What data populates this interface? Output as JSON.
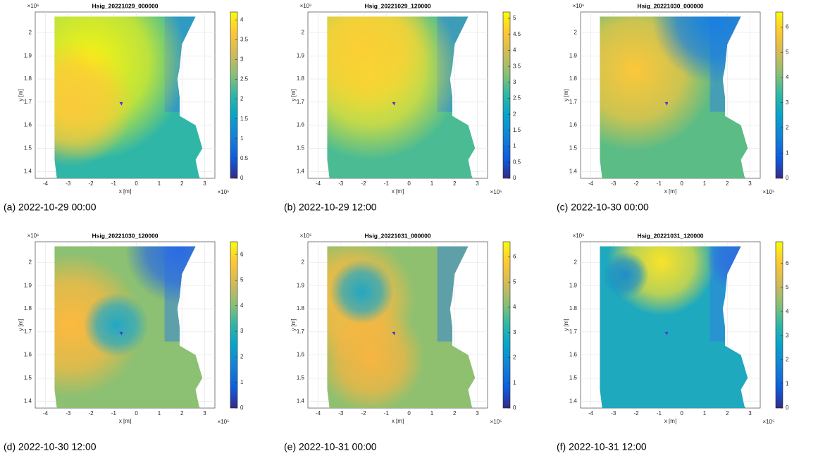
{
  "chart_data": [
    {
      "type": "heatmap",
      "title": "Hsig_20221029_000000",
      "caption": "(a) 2022-10-29 00:00",
      "xlabel": "x [m]",
      "ylabel": "y [m]",
      "x_multiplier": "×10⁵",
      "y_multiplier": "×10⁶",
      "xlim": [
        -4.45,
        3.45
      ],
      "xticks": [
        -4,
        -3,
        -2,
        -1,
        0,
        1,
        2,
        3
      ],
      "ylim": [
        1.37,
        2.09
      ],
      "yticks": [
        1.4,
        1.5,
        1.6,
        1.7,
        1.8,
        1.9,
        2
      ],
      "clim": [
        0,
        4.2
      ],
      "cticks": [
        0,
        0.5,
        1,
        1.5,
        2,
        2.5,
        3,
        3.5,
        4
      ]
    },
    {
      "type": "heatmap",
      "title": "Hsig_20221029_120000",
      "caption": "(b) 2022-10-29 12:00",
      "xlabel": "x [m]",
      "ylabel": "y [m]",
      "x_multiplier": "×10⁵",
      "y_multiplier": "×10⁶",
      "xlim": [
        -4.45,
        3.45
      ],
      "xticks": [
        -4,
        -3,
        -2,
        -1,
        0,
        1,
        2,
        3
      ],
      "ylim": [
        1.37,
        2.09
      ],
      "yticks": [
        1.4,
        1.5,
        1.6,
        1.7,
        1.8,
        1.9,
        2
      ],
      "clim": [
        0,
        5.2
      ],
      "cticks": [
        0,
        0.5,
        1,
        1.5,
        2,
        2.5,
        3,
        3.5,
        4,
        4.5,
        5
      ]
    },
    {
      "type": "heatmap",
      "title": "Hsig_20221030_000000",
      "caption": "(c) 2022-10-30 00:00",
      "xlabel": "x [m]",
      "ylabel": "y [m]",
      "x_multiplier": "×10⁵",
      "y_multiplier": "×10⁶",
      "xlim": [
        -4.45,
        3.45
      ],
      "xticks": [
        -4,
        -3,
        -2,
        -1,
        0,
        1,
        2,
        3
      ],
      "ylim": [
        1.37,
        2.09
      ],
      "yticks": [
        1.4,
        1.5,
        1.6,
        1.7,
        1.8,
        1.9,
        2
      ],
      "clim": [
        0,
        6.6
      ],
      "cticks": [
        0,
        1,
        2,
        3,
        4,
        5,
        6
      ]
    },
    {
      "type": "heatmap",
      "title": "Hsig_20221030_120000",
      "caption": "(d) 2022-10-30 12:00",
      "xlabel": "x [m]",
      "ylabel": "y [m]",
      "x_multiplier": "×10⁵",
      "y_multiplier": "×10⁶",
      "xlim": [
        -4.45,
        3.45
      ],
      "xticks": [
        -4,
        -3,
        -2,
        -1,
        0,
        1,
        2,
        3
      ],
      "ylim": [
        1.37,
        2.09
      ],
      "yticks": [
        1.4,
        1.5,
        1.6,
        1.7,
        1.8,
        1.9,
        2
      ],
      "clim": [
        0,
        6.5
      ],
      "cticks": [
        0,
        1,
        2,
        3,
        4,
        5,
        6
      ]
    },
    {
      "type": "heatmap",
      "title": "Hsig_20221031_000000",
      "caption": "(e) 2022-10-31 00:00",
      "xlabel": "x [m]",
      "ylabel": "y [m]",
      "x_multiplier": "×10⁵",
      "y_multiplier": "×10⁶",
      "xlim": [
        -4.45,
        3.45
      ],
      "xticks": [
        -4,
        -3,
        -2,
        -1,
        0,
        1,
        2,
        3
      ],
      "ylim": [
        1.37,
        2.09
      ],
      "yticks": [
        1.4,
        1.5,
        1.6,
        1.7,
        1.8,
        1.9,
        2
      ],
      "clim": [
        0,
        6.6
      ],
      "cticks": [
        0,
        1,
        2,
        3,
        4,
        5,
        6
      ]
    },
    {
      "type": "heatmap",
      "title": "Hsig_20221031_120000",
      "caption": "(f) 2022-10-31 12:00",
      "xlabel": "x [m]",
      "ylabel": "y [m]",
      "x_multiplier": "×10⁵",
      "y_multiplier": "×10⁶",
      "xlim": [
        -4.45,
        3.45
      ],
      "xticks": [
        -4,
        -3,
        -2,
        -1,
        0,
        1,
        2,
        3
      ],
      "ylim": [
        1.37,
        2.09
      ],
      "yticks": [
        1.4,
        1.5,
        1.6,
        1.7,
        1.8,
        1.9,
        2
      ],
      "clim": [
        0,
        6.9
      ],
      "cticks": [
        0,
        1,
        2,
        3,
        4,
        5,
        6
      ]
    }
  ]
}
